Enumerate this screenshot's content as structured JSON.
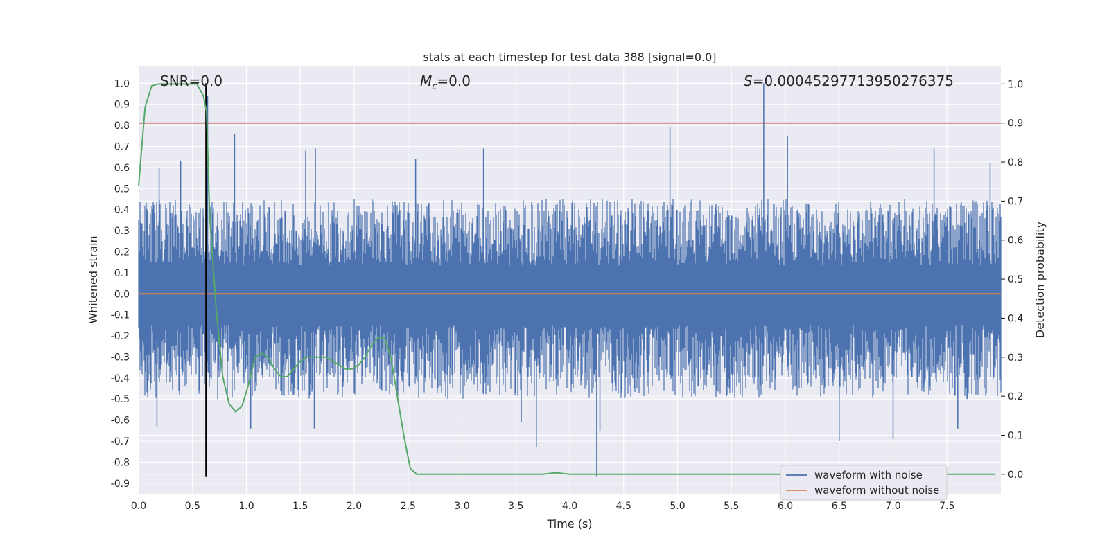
{
  "chart_data": {
    "type": "line",
    "title": "stats at each timestep for test data 388 [signal=0.0]",
    "xlabel": "Time (s)",
    "ylabel_left": "Whitened strain",
    "ylabel_right": "Detection probability",
    "xlim": [
      0.0,
      8.0
    ],
    "ylim_left": [
      -0.95,
      1.08
    ],
    "ylim_right": [
      -0.05,
      1.045
    ],
    "x_ticks": [
      "0.0",
      "0.5",
      "1.0",
      "1.5",
      "2.0",
      "2.5",
      "3.0",
      "3.5",
      "4.0",
      "4.5",
      "5.0",
      "5.5",
      "6.0",
      "6.5",
      "7.0",
      "7.5"
    ],
    "y_ticks_left": [
      "1.0",
      "0.9",
      "0.8",
      "0.7",
      "0.6",
      "0.5",
      "0.4",
      "0.3",
      "0.2",
      "0.1",
      "0.0",
      "-0.1",
      "-0.2",
      "-0.3",
      "-0.4",
      "-0.5",
      "-0.6",
      "-0.7",
      "-0.8",
      "-0.9"
    ],
    "y_ticks_right": [
      "1.0",
      "0.9",
      "0.8",
      "0.7",
      "0.6",
      "0.5",
      "0.4",
      "0.3",
      "0.2",
      "0.1",
      "0.0"
    ],
    "grid": true,
    "legend_position": "lower-right",
    "annotations": {
      "snr": "SNR=0.0",
      "mc_symbol": "M",
      "mc_sub": "c",
      "mc_value": "=0.0",
      "s_symbol": "S",
      "s_value": "=0.00045297713950276375"
    },
    "series": [
      {
        "name": "waveform with noise",
        "axis": "left",
        "color": "#4c72b0",
        "description": "dense noise trace, approx. range -0.87 to 1.0",
        "envelope_upper_typical": 0.45,
        "envelope_lower_typical": -0.5,
        "spikes": [
          {
            "x": 0.19,
            "y": 0.6
          },
          {
            "x": 0.39,
            "y": 0.63
          },
          {
            "x": 0.64,
            "y": 0.94
          },
          {
            "x": 0.89,
            "y": 0.76
          },
          {
            "x": 1.55,
            "y": 0.68
          },
          {
            "x": 1.64,
            "y": 0.69
          },
          {
            "x": 2.57,
            "y": 0.64
          },
          {
            "x": 3.2,
            "y": 0.69
          },
          {
            "x": 4.93,
            "y": 0.79
          },
          {
            "x": 5.8,
            "y": 1.0
          },
          {
            "x": 6.02,
            "y": 0.75
          },
          {
            "x": 7.38,
            "y": 0.69
          },
          {
            "x": 7.9,
            "y": 0.62
          },
          {
            "x": 0.17,
            "y": -0.63
          },
          {
            "x": 0.63,
            "y": -0.68
          },
          {
            "x": 1.04,
            "y": -0.64
          },
          {
            "x": 1.63,
            "y": -0.64
          },
          {
            "x": 3.55,
            "y": -0.61
          },
          {
            "x": 3.69,
            "y": -0.73
          },
          {
            "x": 4.25,
            "y": -0.87
          },
          {
            "x": 4.28,
            "y": -0.65
          },
          {
            "x": 6.5,
            "y": -0.7
          },
          {
            "x": 7.0,
            "y": -0.69
          },
          {
            "x": 7.6,
            "y": -0.64
          }
        ]
      },
      {
        "name": "waveform without noise",
        "axis": "left",
        "color": "#dd8452",
        "x": [
          0.0,
          8.0
        ],
        "y": [
          0.0,
          0.0
        ]
      },
      {
        "name": "detection probability",
        "axis": "right",
        "color": "#55a868",
        "x": [
          0.0,
          0.06,
          0.12,
          0.18,
          0.24,
          0.3,
          0.36,
          0.42,
          0.48,
          0.54,
          0.6,
          0.63,
          0.66,
          0.72,
          0.78,
          0.84,
          0.9,
          0.96,
          1.02,
          1.08,
          1.14,
          1.2,
          1.26,
          1.32,
          1.38,
          1.44,
          1.5,
          1.56,
          1.62,
          1.68,
          1.74,
          1.8,
          1.86,
          1.92,
          1.98,
          2.04,
          2.1,
          2.16,
          2.22,
          2.28,
          2.34,
          2.4,
          2.46,
          2.52,
          2.58,
          2.64,
          3.0,
          3.5,
          3.75,
          3.87,
          4.0,
          4.5,
          5.0,
          6.0,
          7.0,
          7.95
        ],
        "y": [
          0.74,
          0.94,
          0.995,
          1.0,
          1.0,
          1.0,
          1.0,
          1.0,
          1.0,
          1.0,
          0.97,
          0.93,
          0.66,
          0.42,
          0.25,
          0.18,
          0.16,
          0.175,
          0.23,
          0.3,
          0.31,
          0.3,
          0.27,
          0.25,
          0.25,
          0.27,
          0.29,
          0.3,
          0.3,
          0.3,
          0.3,
          0.29,
          0.28,
          0.27,
          0.27,
          0.28,
          0.3,
          0.33,
          0.35,
          0.35,
          0.3,
          0.2,
          0.1,
          0.015,
          0.0,
          0.0,
          0.0,
          0.0,
          0.0,
          0.004,
          0.0,
          0.0,
          0.0,
          0.0,
          0.0,
          0.0
        ]
      }
    ],
    "threshold_line": {
      "axis": "right",
      "y": 0.9,
      "color": "#c44e52"
    },
    "marker_line": {
      "axis": "left",
      "x": 0.625,
      "y_range": [
        -0.87,
        1.0
      ],
      "color": "#000000"
    }
  }
}
